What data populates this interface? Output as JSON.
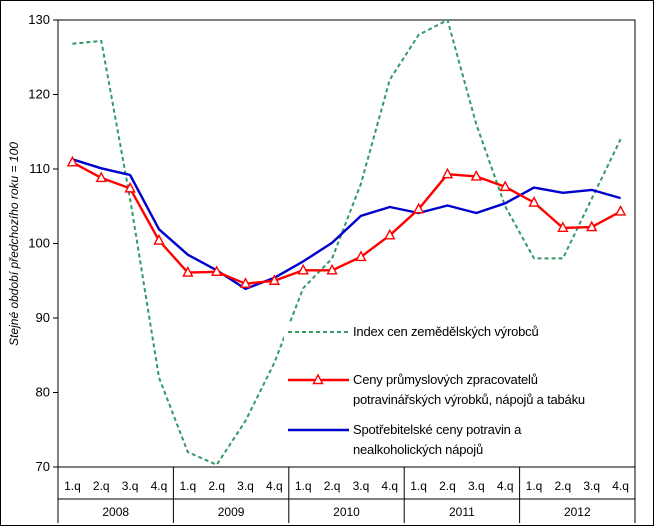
{
  "chart_data": {
    "type": "line",
    "ylabel": "Stejné období předchozího roku = 100",
    "ylim": [
      70,
      130
    ],
    "yticks": [
      "70",
      "80",
      "90",
      "100",
      "110",
      "120",
      "130"
    ],
    "quarters": [
      "1.q",
      "2.q",
      "3.q",
      "4.q",
      "1.q",
      "2.q",
      "3.q",
      "4.q",
      "1.q",
      "2.q",
      "3.q",
      "4.q",
      "1.q",
      "2.q",
      "3.q",
      "4.q",
      "1.q",
      "2.q",
      "3.q",
      "4.q"
    ],
    "years": [
      "2008",
      "2009",
      "2010",
      "2011",
      "2012"
    ],
    "grid": false,
    "series": [
      {
        "name": "Index cen zemědělských výrobců",
        "legend_lines": [
          "Index cen zemědělských výrobců"
        ],
        "color": "#339966",
        "style": "dashed",
        "values": [
          126.8,
          127.2,
          106.0,
          82.0,
          72.0,
          70.3,
          76.2,
          84.0,
          94.0,
          98.0,
          108.0,
          122.0,
          128.0,
          130.0,
          116.0,
          105.0,
          98.0,
          98.0,
          106.0,
          114.0
        ]
      },
      {
        "name": "Ceny průmyslových zpracovatelů potravinářských výrobků, nápojů a tabáku",
        "legend_lines": [
          "Ceny průmyslových zpracovatelů",
          "potravinářských výrobků, nápojů a tabáku"
        ],
        "color": "#ff0000",
        "marker": "triangle",
        "values": [
          110.9,
          108.8,
          107.4,
          100.4,
          96.1,
          96.2,
          94.6,
          95.0,
          96.4,
          96.4,
          98.2,
          101.1,
          104.6,
          109.3,
          109.0,
          107.6,
          105.5,
          102.1,
          102.2,
          104.3
        ]
      },
      {
        "name": "Spotřebitelské ceny potravin a nealkoholických nápojů",
        "legend_lines": [
          "Spotřebitelské ceny potravin a",
          "nealkoholických nápojů"
        ],
        "color": "#0000cc",
        "values": [
          111.3,
          110.1,
          109.2,
          101.9,
          98.5,
          96.4,
          93.9,
          95.4,
          97.6,
          100.1,
          103.7,
          104.9,
          104.1,
          105.1,
          104.1,
          105.4,
          107.5,
          106.8,
          107.2,
          106.1
        ]
      }
    ]
  }
}
